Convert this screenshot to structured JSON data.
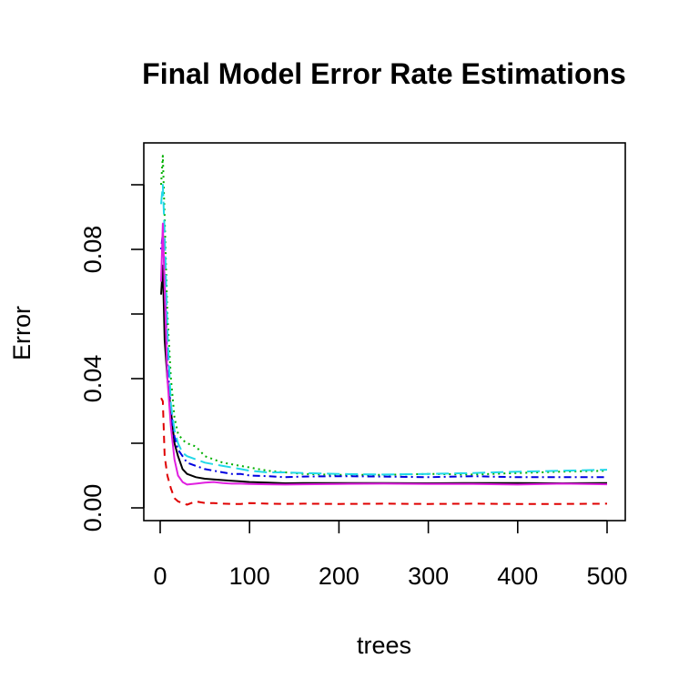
{
  "chart_data": {
    "type": "line",
    "title": "Final Model Error Rate Estimations",
    "xlabel": "trees",
    "ylabel": "Error",
    "xlim": [
      0,
      500
    ],
    "ylim": [
      0.0,
      0.1
    ],
    "x_ticks": [
      0,
      100,
      200,
      300,
      400,
      500
    ],
    "x_tick_labels": [
      "0",
      "100",
      "200",
      "300",
      "400",
      "500"
    ],
    "y_ticks": [
      0.0,
      0.02,
      0.04,
      0.06,
      0.08,
      0.1
    ],
    "y_tick_labels": [
      "0.00",
      "",
      "0.04",
      "",
      "0.08",
      ""
    ],
    "grid": false,
    "legend": "none",
    "series": [
      {
        "color": "#000000",
        "dash": "solid",
        "x": [
          1,
          3,
          5,
          8,
          12,
          16,
          20,
          25,
          30,
          40,
          50,
          60,
          70,
          80,
          90,
          100,
          120,
          140,
          160,
          200,
          250,
          300,
          350,
          400,
          450,
          500
        ],
        "y": [
          0.066,
          0.075,
          0.052,
          0.04,
          0.03,
          0.02,
          0.016,
          0.012,
          0.0105,
          0.0095,
          0.009,
          0.0088,
          0.0086,
          0.0084,
          0.0082,
          0.008,
          0.0078,
          0.0076,
          0.0077,
          0.0077,
          0.0077,
          0.0076,
          0.0077,
          0.0077,
          0.0076,
          0.0077
        ]
      },
      {
        "color": "#df0000",
        "dash": "dashed",
        "x": [
          1,
          3,
          5,
          8,
          12,
          16,
          20,
          25,
          30,
          40,
          50,
          60,
          70,
          80,
          90,
          100,
          120,
          140,
          160,
          200,
          250,
          300,
          350,
          400,
          450,
          500
        ],
        "y": [
          0.034,
          0.033,
          0.016,
          0.01,
          0.006,
          0.003,
          0.002,
          0.0015,
          0.001,
          0.002,
          0.0015,
          0.0015,
          0.0013,
          0.0012,
          0.0012,
          0.0015,
          0.0013,
          0.0012,
          0.0013,
          0.0012,
          0.0013,
          0.0012,
          0.0013,
          0.0012,
          0.0012,
          0.0013
        ]
      },
      {
        "color": "#00b000",
        "dash": "dotted",
        "x": [
          1,
          3,
          5,
          8,
          12,
          16,
          20,
          25,
          30,
          40,
          50,
          60,
          70,
          80,
          90,
          100,
          120,
          140,
          160,
          200,
          250,
          300,
          350,
          400,
          450,
          500
        ],
        "y": [
          0.1,
          0.109,
          0.09,
          0.06,
          0.04,
          0.028,
          0.023,
          0.021,
          0.02,
          0.019,
          0.016,
          0.015,
          0.014,
          0.0135,
          0.013,
          0.0125,
          0.0115,
          0.011,
          0.0105,
          0.0102,
          0.0102,
          0.0105,
          0.0103,
          0.0108,
          0.0112,
          0.0115
        ]
      },
      {
        "color": "#0000e0",
        "dash": "dotdash",
        "x": [
          1,
          3,
          5,
          8,
          12,
          16,
          20,
          25,
          30,
          40,
          50,
          60,
          70,
          80,
          90,
          100,
          120,
          140,
          160,
          200,
          250,
          300,
          350,
          400,
          450,
          500
        ],
        "y": [
          0.08,
          0.085,
          0.07,
          0.045,
          0.03,
          0.022,
          0.018,
          0.016,
          0.014,
          0.013,
          0.012,
          0.0115,
          0.011,
          0.0105,
          0.0105,
          0.01,
          0.0098,
          0.0095,
          0.0097,
          0.0098,
          0.0097,
          0.0095,
          0.0098,
          0.0095,
          0.0095,
          0.0095
        ]
      },
      {
        "color": "#22d8e8",
        "dash": "longdash",
        "x": [
          1,
          3,
          5,
          8,
          12,
          16,
          20,
          25,
          30,
          40,
          50,
          60,
          70,
          80,
          90,
          100,
          120,
          140,
          160,
          200,
          250,
          300,
          350,
          400,
          450,
          500
        ],
        "y": [
          0.094,
          0.1,
          0.085,
          0.055,
          0.032,
          0.024,
          0.02,
          0.017,
          0.016,
          0.015,
          0.014,
          0.0135,
          0.013,
          0.0125,
          0.012,
          0.0115,
          0.011,
          0.011,
          0.0108,
          0.0105,
          0.0103,
          0.0105,
          0.0108,
          0.0112,
          0.0115,
          0.0118
        ]
      },
      {
        "color": "#e020e0",
        "dash": "solid",
        "x": [
          1,
          3,
          5,
          8,
          12,
          16,
          20,
          25,
          30,
          40,
          50,
          60,
          70,
          80,
          90,
          100,
          120,
          140,
          160,
          200,
          250,
          300,
          350,
          400,
          450,
          500
        ],
        "y": [
          0.07,
          0.088,
          0.068,
          0.04,
          0.025,
          0.015,
          0.01,
          0.008,
          0.0072,
          0.0075,
          0.0078,
          0.008,
          0.0077,
          0.0075,
          0.0075,
          0.0074,
          0.0073,
          0.0072,
          0.0073,
          0.0074,
          0.0075,
          0.0074,
          0.0074,
          0.0072,
          0.0075,
          0.0073
        ]
      }
    ]
  }
}
